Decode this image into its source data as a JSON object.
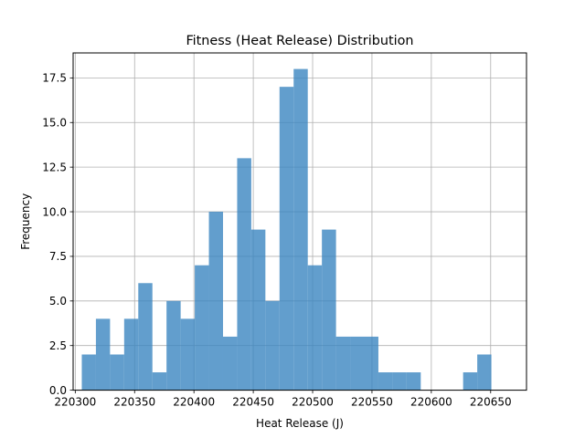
{
  "chart_data": {
    "type": "bar",
    "title": "Fitness (Heat Release) Distribution",
    "xlabel": "Heat Release (J)",
    "ylabel": "Frequency",
    "xlim": [
      220298.2,
      220680.2
    ],
    "ylim": [
      0,
      18.9
    ],
    "x_ticks": [
      220300,
      220350,
      220400,
      220450,
      220500,
      220550,
      220600,
      220650
    ],
    "y_ticks": [
      0.0,
      2.5,
      5.0,
      7.5,
      10.0,
      12.5,
      15.0,
      17.5
    ],
    "y_tick_labels": [
      "0.0",
      "2.5",
      "5.0",
      "7.5",
      "10.0",
      "12.5",
      "15.0",
      "17.5"
    ],
    "bin_start": 220305.5,
    "bin_width": 11.9,
    "bin_values": [
      2,
      4,
      2,
      4,
      6,
      1,
      5,
      4,
      7,
      10,
      3,
      13,
      9,
      5,
      17,
      18,
      7,
      9,
      3,
      3,
      3,
      1,
      1,
      1,
      0,
      0,
      0,
      1,
      2
    ],
    "grid": true,
    "bar_color": "#3b86c0",
    "bar_opacity": 0.8
  }
}
